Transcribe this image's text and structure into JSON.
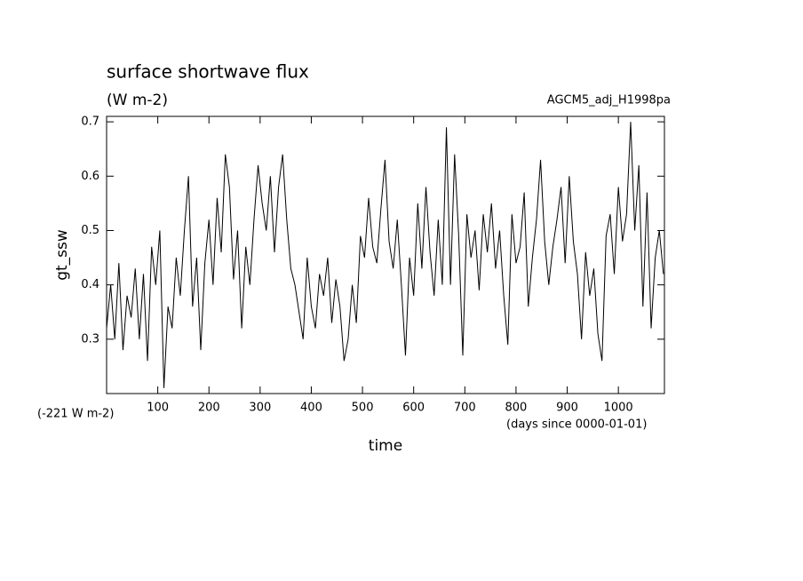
{
  "chart_data": {
    "type": "line",
    "title": "surface shortwave flux",
    "subtitle": "(W m-2)",
    "annotation": "AGCM5_adj_H1998pa",
    "offset_note": "(-221 W m-2)",
    "x_unit": "(days since 0000-01-01)",
    "xlabel": "time",
    "ylabel": "gt_ssw",
    "xlim": [
      0,
      1090
    ],
    "ylim": [
      0.2,
      0.71
    ],
    "xticks": [
      100,
      200,
      300,
      400,
      500,
      600,
      700,
      800,
      900,
      1000
    ],
    "yticks": [
      0.3,
      0.4,
      0.5,
      0.6,
      0.7
    ],
    "x": [
      0,
      8,
      16,
      24,
      32,
      40,
      48,
      56,
      64,
      72,
      80,
      88,
      96,
      104,
      112,
      120,
      128,
      136,
      144,
      152,
      160,
      168,
      176,
      184,
      192,
      200,
      208,
      216,
      224,
      232,
      240,
      248,
      256,
      264,
      272,
      280,
      288,
      296,
      304,
      312,
      320,
      328,
      336,
      344,
      352,
      360,
      368,
      376,
      384,
      392,
      400,
      408,
      416,
      424,
      432,
      440,
      448,
      456,
      464,
      472,
      480,
      488,
      496,
      504,
      512,
      520,
      528,
      536,
      544,
      552,
      560,
      568,
      576,
      584,
      592,
      600,
      608,
      616,
      624,
      632,
      640,
      648,
      656,
      664,
      672,
      680,
      688,
      696,
      704,
      712,
      720,
      728,
      736,
      744,
      752,
      760,
      768,
      776,
      784,
      792,
      800,
      808,
      816,
      824,
      832,
      840,
      848,
      856,
      864,
      872,
      880,
      888,
      896,
      904,
      912,
      920,
      928,
      936,
      944,
      952,
      960,
      968,
      976,
      984,
      992,
      1000,
      1008,
      1016,
      1024,
      1032,
      1040,
      1048,
      1056,
      1064,
      1072,
      1080,
      1088
    ],
    "series": [
      {
        "color": "#000000",
        "values": [
          0.32,
          0.4,
          0.3,
          0.44,
          0.28,
          0.38,
          0.34,
          0.43,
          0.3,
          0.42,
          0.26,
          0.47,
          0.4,
          0.5,
          0.21,
          0.36,
          0.32,
          0.45,
          0.38,
          0.5,
          0.6,
          0.36,
          0.45,
          0.28,
          0.44,
          0.52,
          0.4,
          0.56,
          0.46,
          0.64,
          0.58,
          0.41,
          0.5,
          0.32,
          0.47,
          0.4,
          0.52,
          0.62,
          0.55,
          0.5,
          0.6,
          0.46,
          0.58,
          0.64,
          0.52,
          0.43,
          0.4,
          0.35,
          0.3,
          0.45,
          0.36,
          0.32,
          0.42,
          0.38,
          0.45,
          0.33,
          0.41,
          0.36,
          0.26,
          0.3,
          0.4,
          0.33,
          0.49,
          0.45,
          0.56,
          0.47,
          0.44,
          0.54,
          0.63,
          0.48,
          0.43,
          0.52,
          0.4,
          0.27,
          0.45,
          0.38,
          0.55,
          0.43,
          0.58,
          0.46,
          0.38,
          0.52,
          0.4,
          0.69,
          0.4,
          0.64,
          0.49,
          0.27,
          0.53,
          0.45,
          0.5,
          0.39,
          0.53,
          0.46,
          0.55,
          0.43,
          0.5,
          0.38,
          0.29,
          0.53,
          0.44,
          0.47,
          0.57,
          0.36,
          0.45,
          0.52,
          0.63,
          0.48,
          0.4,
          0.47,
          0.52,
          0.58,
          0.44,
          0.6,
          0.48,
          0.42,
          0.3,
          0.46,
          0.38,
          0.43,
          0.31,
          0.26,
          0.49,
          0.53,
          0.42,
          0.58,
          0.48,
          0.53,
          0.7,
          0.5,
          0.62,
          0.36,
          0.57,
          0.32,
          0.45,
          0.5,
          0.42
        ]
      }
    ]
  }
}
